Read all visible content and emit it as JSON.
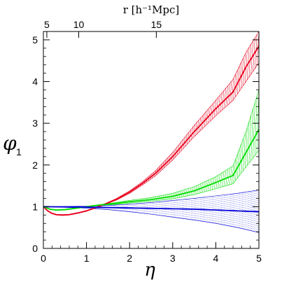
{
  "chart_data": {
    "type": "line",
    "xlabel": "η",
    "ylabel": "φ",
    "ylabel_subscript": "1",
    "top_axis_label": "r [h⁻¹Mpc]",
    "xlim": [
      0,
      5
    ],
    "ylim": [
      0,
      5.2
    ],
    "x_ticks": [
      0,
      1,
      2,
      3,
      4,
      5
    ],
    "y_ticks": [
      0,
      1,
      2,
      3,
      4,
      5
    ],
    "top_ticks": [
      {
        "eta": 0.08,
        "label": "5"
      },
      {
        "eta": 0.82,
        "label": "10"
      },
      {
        "eta": 2.62,
        "label": "15"
      }
    ],
    "series": [
      {
        "color": "#e8001c",
        "hatch": "diagonal",
        "x": [
          0,
          0.1,
          0.2,
          0.3,
          0.45,
          0.6,
          0.8,
          1.0,
          1.2,
          1.4,
          1.7,
          2.0,
          2.3,
          2.6,
          3.0,
          3.5,
          4.0,
          4.4,
          4.7,
          5.0
        ],
        "mean": [
          1.0,
          0.9,
          0.84,
          0.81,
          0.8,
          0.81,
          0.85,
          0.9,
          0.97,
          1.05,
          1.18,
          1.35,
          1.56,
          1.8,
          2.2,
          2.8,
          3.35,
          3.75,
          4.35,
          4.85
        ],
        "lower": [
          1.0,
          0.89,
          0.83,
          0.8,
          0.79,
          0.8,
          0.84,
          0.89,
          0.96,
          1.04,
          1.16,
          1.32,
          1.52,
          1.74,
          2.12,
          2.68,
          3.18,
          3.55,
          4.0,
          4.45
        ],
        "upper": [
          1.0,
          0.91,
          0.85,
          0.82,
          0.81,
          0.82,
          0.86,
          0.91,
          0.98,
          1.06,
          1.2,
          1.38,
          1.6,
          1.86,
          2.3,
          2.95,
          3.55,
          4.05,
          4.7,
          5.2
        ]
      },
      {
        "color": "#00dd00",
        "hatch": "diagonal",
        "x": [
          0,
          0.15,
          0.3,
          0.5,
          0.8,
          1.0,
          1.3,
          1.6,
          2.0,
          2.5,
          3.0,
          3.5,
          4.0,
          4.4,
          4.7,
          5.0
        ],
        "mean": [
          1.0,
          0.94,
          0.92,
          0.93,
          0.97,
          1.0,
          1.04,
          1.07,
          1.12,
          1.17,
          1.25,
          1.38,
          1.58,
          1.75,
          2.3,
          2.85
        ],
        "lower": [
          1.0,
          0.93,
          0.91,
          0.92,
          0.96,
          0.99,
          1.03,
          1.05,
          1.09,
          1.13,
          1.19,
          1.29,
          1.43,
          1.55,
          1.95,
          2.35
        ],
        "upper": [
          1.0,
          0.95,
          0.93,
          0.94,
          0.98,
          1.01,
          1.05,
          1.09,
          1.15,
          1.22,
          1.32,
          1.48,
          1.72,
          1.98,
          2.8,
          3.8
        ]
      },
      {
        "color": "#0000d8",
        "hatch": "dotted",
        "x": [
          0,
          0.5,
          1.0,
          1.5,
          2.0,
          2.5,
          3.0,
          3.5,
          4.0,
          4.5,
          5.0
        ],
        "mean": [
          1.0,
          0.995,
          0.99,
          0.98,
          0.97,
          0.96,
          0.95,
          0.94,
          0.92,
          0.9,
          0.88
        ],
        "lower": [
          1.0,
          0.985,
          0.965,
          0.93,
          0.88,
          0.82,
          0.75,
          0.68,
          0.6,
          0.5,
          0.38
        ],
        "upper": [
          1.0,
          1.005,
          1.015,
          1.03,
          1.06,
          1.1,
          1.15,
          1.2,
          1.26,
          1.32,
          1.4
        ]
      }
    ]
  }
}
